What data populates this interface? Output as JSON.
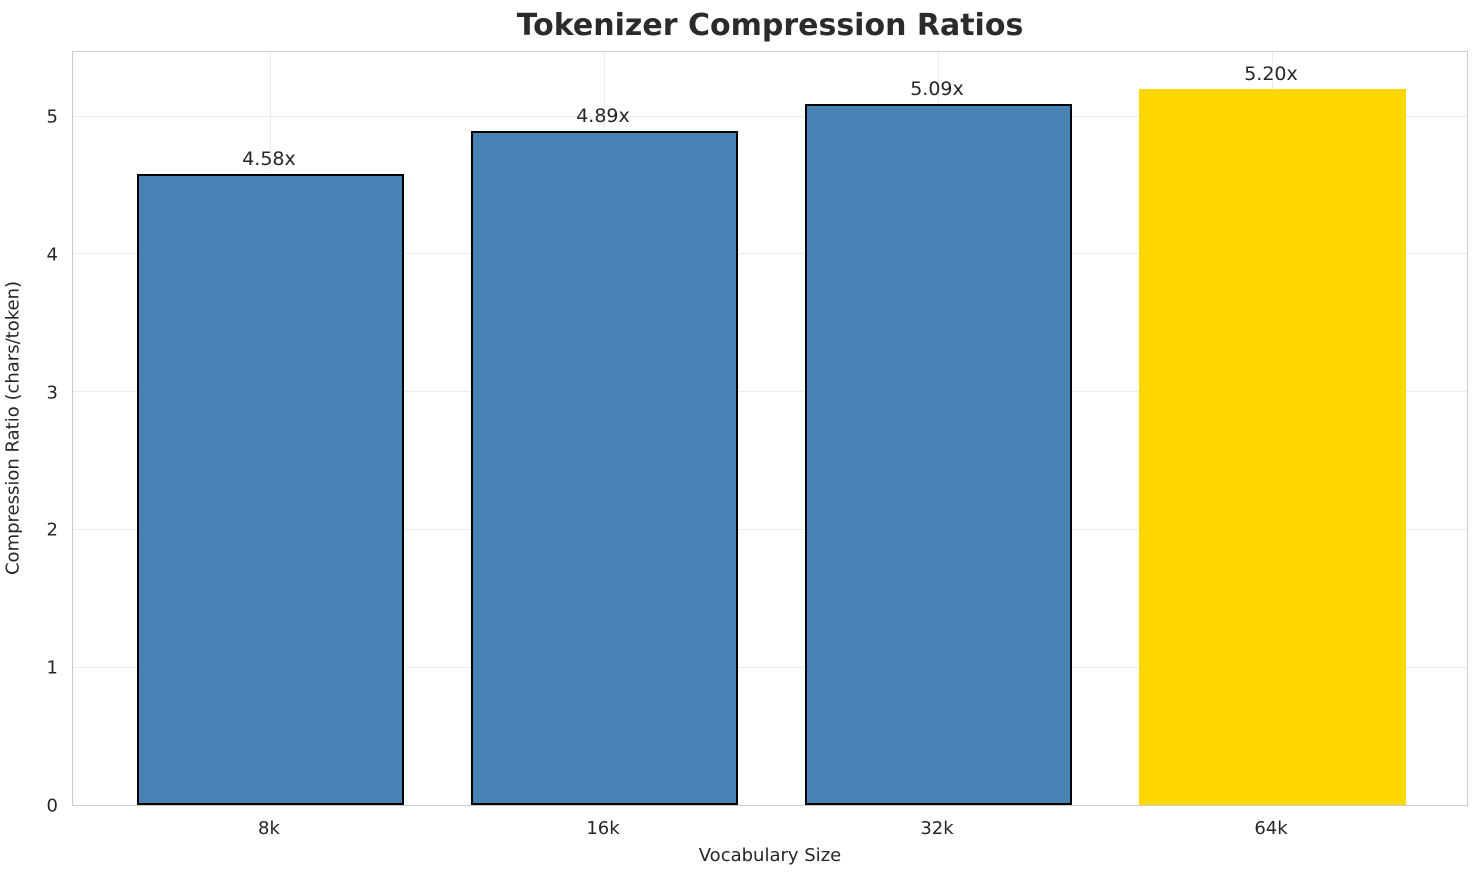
{
  "chart_data": {
    "type": "bar",
    "title": "Tokenizer Compression Ratios",
    "xlabel": "Vocabulary Size",
    "ylabel": "Compression Ratio (chars/token)",
    "categories": [
      "8k",
      "16k",
      "32k",
      "64k"
    ],
    "values": [
      4.58,
      4.89,
      5.09,
      5.2
    ],
    "bar_labels": [
      "4.58x",
      "4.89x",
      "5.09x",
      "5.20x"
    ],
    "bar_colors": [
      "#4682B4",
      "#4682B4",
      "#4682B4",
      "#FFD700"
    ],
    "bar_edge_colors": [
      "#000000",
      "#000000",
      "#000000",
      "none"
    ],
    "highlight_category": "64k",
    "yticks": [
      0,
      1,
      2,
      3,
      4,
      5
    ],
    "ylim": [
      0,
      5.48
    ],
    "grid": true,
    "legend": "none",
    "colors": {
      "bar": "#4682B4",
      "highlight": "#FFD700",
      "bar_edge": "#000000",
      "grid": "#ececec",
      "spine": "#cccccc",
      "text": "#262626",
      "title_text": "#2b2b2b",
      "background": "#ffffff"
    }
  }
}
